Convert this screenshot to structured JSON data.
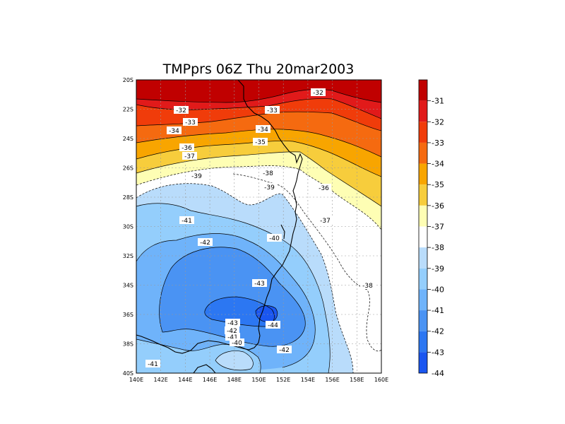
{
  "title": "TMPprs 06Z Thu 20mar2003",
  "lat_ticks": [
    "20S",
    "22S",
    "24S",
    "26S",
    "28S",
    "30S",
    "32S",
    "34S",
    "36S",
    "38S",
    "40S"
  ],
  "lon_ticks": [
    "140E",
    "142E",
    "144E",
    "146E",
    "148E",
    "150E",
    "152E",
    "154E",
    "156E",
    "158E",
    "160E"
  ],
  "colorbar": {
    "levels": [
      "-31",
      "-32",
      "-33",
      "-34",
      "-35",
      "-36",
      "-37",
      "-38",
      "-39",
      "-40",
      "-41",
      "-42",
      "-43",
      "-44"
    ],
    "colors": [
      "#c00000",
      "#e11a1a",
      "#f03c0a",
      "#f56a10",
      "#f8a500",
      "#f7cd3c",
      "#fefeb4",
      "#ffffff",
      "#b9dcfb",
      "#94cefc",
      "#6fb3fa",
      "#4a93f3",
      "#2c77f2",
      "#1a56f0"
    ]
  },
  "contour_labels": [
    {
      "text": "-32"
    },
    {
      "text": "-32"
    },
    {
      "text": "-33"
    },
    {
      "text": "-33"
    },
    {
      "text": "-34"
    },
    {
      "text": "-34"
    },
    {
      "text": "-35"
    },
    {
      "text": "-36"
    },
    {
      "text": "-37"
    },
    {
      "text": "-38"
    },
    {
      "text": "-39"
    },
    {
      "text": "-39"
    },
    {
      "text": "-36"
    },
    {
      "text": "-37"
    },
    {
      "text": "-41"
    },
    {
      "text": "-42"
    },
    {
      "text": "-40"
    },
    {
      "text": "-43"
    },
    {
      "text": "-38"
    },
    {
      "text": "-43"
    },
    {
      "text": "-44"
    },
    {
      "text": "-42"
    },
    {
      "text": "-41"
    },
    {
      "text": "-40"
    },
    {
      "text": "-42"
    },
    {
      "text": "-41"
    }
  ]
}
